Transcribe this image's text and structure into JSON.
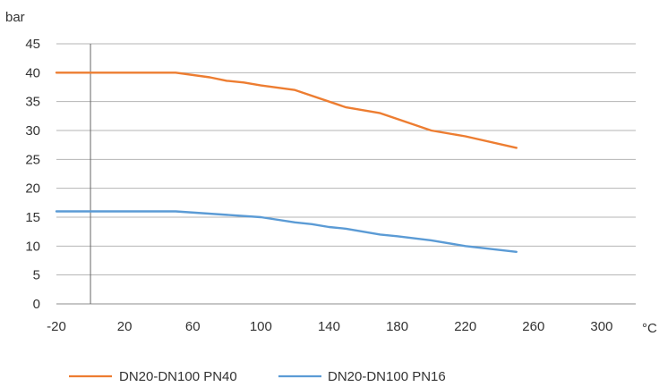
{
  "chart_data": {
    "type": "line",
    "title": "",
    "xlabel": "",
    "ylabel": "",
    "y_unit": "bar",
    "x_unit": "°C",
    "xlim": [
      -20,
      320
    ],
    "ylim": [
      0,
      45
    ],
    "x_ticks": [
      -20,
      20,
      60,
      100,
      140,
      180,
      220,
      260,
      300
    ],
    "x_tick_labels": [
      "-20",
      "20",
      "60",
      "100",
      "140",
      "180",
      "220",
      "260",
      "300"
    ],
    "y_ticks": [
      0,
      5,
      10,
      15,
      20,
      25,
      30,
      35,
      40,
      45
    ],
    "y_tick_labels": [
      "0",
      "5",
      "10",
      "15",
      "20",
      "25",
      "30",
      "35",
      "40",
      "45"
    ],
    "grid": "horizontal",
    "vertical_reference_x": 0,
    "legend_position": "bottom",
    "series": [
      {
        "name": "DN20-DN100 PN40",
        "color": "#ED7D31",
        "x": [
          -20,
          50,
          70,
          80,
          90,
          100,
          120,
          150,
          170,
          200,
          220,
          250
        ],
        "values": [
          40,
          40,
          39.2,
          38.6,
          38.3,
          37.8,
          37,
          34,
          33,
          30,
          29,
          27
        ]
      },
      {
        "name": "DN20-DN100 PN16",
        "color": "#5B9BD5",
        "x": [
          -20,
          50,
          100,
          120,
          130,
          140,
          150,
          170,
          180,
          200,
          220,
          250
        ],
        "values": [
          16,
          16,
          15,
          14.1,
          13.8,
          13.3,
          13,
          12,
          11.7,
          11,
          10,
          9
        ]
      }
    ]
  }
}
